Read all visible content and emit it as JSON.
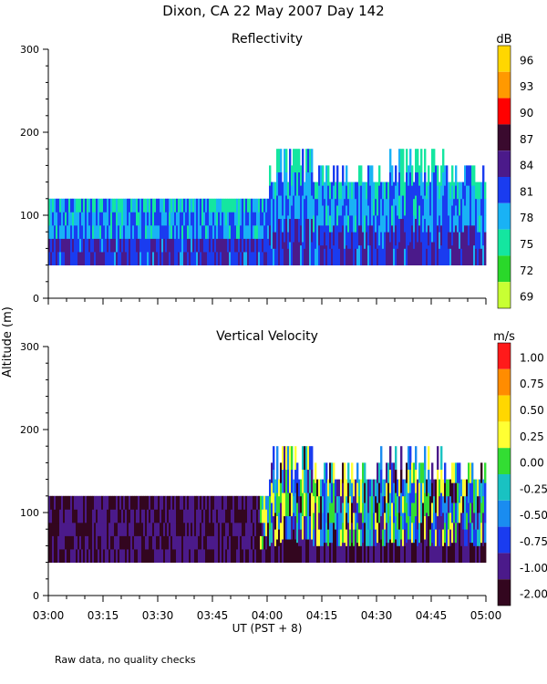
{
  "chart_data": {
    "title": "Dixon, CA 22 May 2007  Day 142",
    "shared_ylabel": "Altitude (m)",
    "xlabel": "UT  (PST + 8)",
    "x_ticks": [
      "03:00",
      "03:15",
      "03:30",
      "03:45",
      "04:00",
      "04:15",
      "04:30",
      "04:45",
      "05:00"
    ],
    "footnote": "Raw data, no quality checks",
    "panels": [
      {
        "type": "heatmap",
        "title": "Reflectivity",
        "unit": "dB",
        "ylim": [
          0,
          300
        ],
        "y_ticks": [
          "0",
          "100",
          "200",
          "300"
        ],
        "xlim_minutes_from_0300": [
          0,
          120
        ],
        "colorbar": {
          "labels": [
            "96",
            "93",
            "90",
            "87",
            "84",
            "81",
            "78",
            "75",
            "72",
            "69"
          ],
          "colors": [
            "#ffd700",
            "#ff9900",
            "#ff0000",
            "#3a0a2e",
            "#4b1a8a",
            "#1a3cf0",
            "#19b2f5",
            "#14e6a0",
            "#2ad82a",
            "#c8ff33"
          ]
        },
        "data_range": {
          "min_altitude": 40,
          "top_altitude_start": 120,
          "top_altitude_max": 180
        }
      },
      {
        "type": "heatmap",
        "title": "Vertical Velocity",
        "unit": "m/s",
        "ylim": [
          0,
          300
        ],
        "y_ticks": [
          "0",
          "100",
          "200",
          "300"
        ],
        "xlim_minutes_from_0300": [
          0,
          120
        ],
        "colorbar": {
          "labels": [
            "1.00",
            "0.75",
            "0.50",
            "0.25",
            "0.00",
            "-0.25",
            "-0.50",
            "-0.75",
            "-1.00",
            "-2.00"
          ],
          "colors": [
            "#ff1a1a",
            "#ff8c00",
            "#ffd700",
            "#ffff33",
            "#33dd33",
            "#19c2c2",
            "#1a8cf0",
            "#1a3cf0",
            "#4b1a8a",
            "#33061f"
          ]
        },
        "data_range": {
          "min_altitude": 40,
          "top_altitude_start": 120,
          "top_altitude_max": 180
        }
      }
    ]
  }
}
